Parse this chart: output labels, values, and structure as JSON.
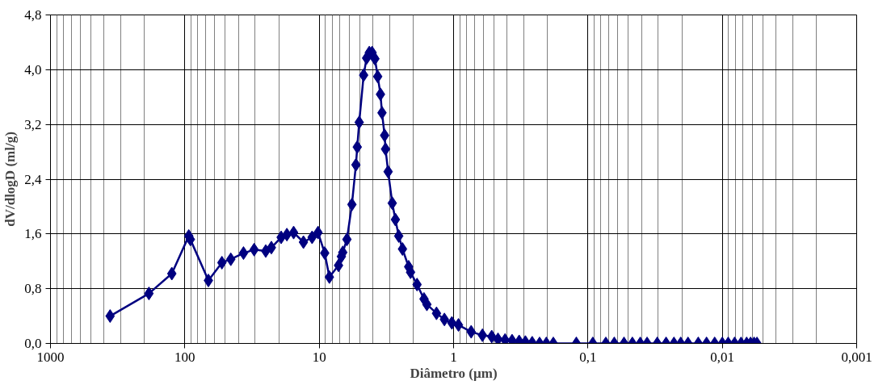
{
  "chart_data": {
    "type": "line",
    "xlabel": "Diâmetro (µm)",
    "ylabel": "dV/dlogD (ml/g)",
    "log": "x",
    "grid": true,
    "marker": "diamond",
    "line_style": "solid",
    "xlim": [
      1000,
      0.001
    ],
    "xticks": [
      1000,
      100,
      10,
      1,
      {
        "value": 0.1,
        "label": "0,1"
      },
      {
        "value": 0.01,
        "label": "0,01"
      },
      {
        "value": 0.001,
        "label": "0,001"
      }
    ],
    "ylim": [
      0,
      4.8
    ],
    "yticks": [
      {
        "value": 0,
        "label": "0,0"
      },
      {
        "value": 0.8,
        "label": "0,8"
      },
      {
        "value": 1.6,
        "label": "1,6"
      },
      {
        "value": 2.4,
        "label": "2,4"
      },
      {
        "value": 3.2,
        "label": "3,2"
      },
      {
        "value": 4.0,
        "label": "4,0"
      },
      {
        "value": 4.8,
        "label": "4,8"
      }
    ],
    "series": [
      {
        "color": "#000080",
        "x": [
          360,
          185,
          125,
          93.5,
          91,
          66.8,
          53,
          45.5,
          36.6,
          30.5,
          25,
          22.7,
          19.2,
          17.4,
          15.5,
          13.1,
          11.3,
          10.2,
          9.1,
          8.4,
          7.18,
          6.84,
          6.68,
          6.22,
          5.71,
          5.33,
          5.21,
          5.04,
          4.67,
          4.44,
          4.24,
          4.04,
          3.85,
          3.67,
          3.5,
          3.41,
          3.26,
          3.21,
          3.07,
          2.86,
          2.71,
          2.56,
          2.4,
          2.16,
          2.09,
          1.87,
          1.66,
          1.58,
          1.34,
          1.17,
          1.03,
          0.92,
          0.74,
          0.61,
          0.52,
          0.467,
          0.414,
          0.367,
          0.325,
          0.292,
          0.26,
          0.229,
          0.204,
          0.181,
          0.122,
          0.092,
          0.0736,
          0.0637,
          0.0539,
          0.0467,
          0.0408,
          0.0363,
          0.0305,
          0.0262,
          0.0229,
          0.0204,
          0.018,
          0.0151,
          0.0131,
          0.0114,
          0.01,
          0.00904,
          0.0081,
          0.00725,
          0.00659,
          0.00616,
          0.0058,
          0.00552
        ],
        "values": [
          0.4,
          0.73,
          1.02,
          1.57,
          1.52,
          0.92,
          1.18,
          1.23,
          1.32,
          1.37,
          1.35,
          1.4,
          1.55,
          1.59,
          1.62,
          1.48,
          1.55,
          1.62,
          1.32,
          0.97,
          1.14,
          1.27,
          1.33,
          1.52,
          2.03,
          2.61,
          2.87,
          3.23,
          3.92,
          4.17,
          4.25,
          4.25,
          4.16,
          3.9,
          3.64,
          3.37,
          3.04,
          2.84,
          2.51,
          2.05,
          1.81,
          1.57,
          1.38,
          1.12,
          1.04,
          0.86,
          0.65,
          0.57,
          0.44,
          0.35,
          0.3,
          0.27,
          0.17,
          0.12,
          0.1,
          0.06,
          0.05,
          0.04,
          0.03,
          0.02,
          0.01,
          0,
          0,
          0,
          0,
          0,
          0,
          0,
          0,
          0,
          0,
          0,
          0,
          0,
          0,
          0,
          0,
          0,
          0,
          0,
          0,
          0,
          0,
          0,
          0,
          0,
          0,
          0
        ]
      }
    ]
  }
}
